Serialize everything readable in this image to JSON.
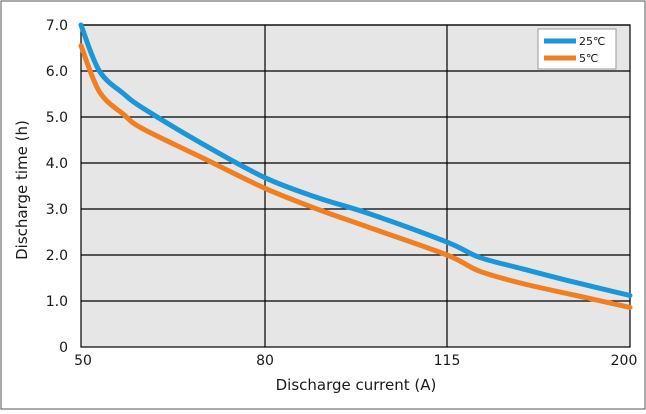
{
  "chart_data": {
    "type": "line",
    "xlabel": "Discharge current (A)",
    "ylabel": "Discharge time (h)",
    "x_ticks": [
      "50",
      "80",
      "115",
      "200"
    ],
    "y_ticks": [
      "0",
      "1.0",
      "2.0",
      "3.0",
      "4.0",
      "5.0",
      "6.0",
      "7.0"
    ],
    "ylim": [
      0,
      7.0
    ],
    "grid": true,
    "legend_position": "top-right",
    "series": [
      {
        "name": "25℃",
        "color": "#1b96d6",
        "points": [
          {
            "x": 50,
            "y": 7.0
          },
          {
            "x": 53,
            "y": 6.0
          },
          {
            "x": 57,
            "y": 5.5
          },
          {
            "x": 60,
            "y": 5.2
          },
          {
            "x": 70,
            "y": 4.4
          },
          {
            "x": 80,
            "y": 3.68
          },
          {
            "x": 90,
            "y": 3.25
          },
          {
            "x": 100,
            "y": 2.9
          },
          {
            "x": 115,
            "y": 2.28
          },
          {
            "x": 130,
            "y": 1.95
          },
          {
            "x": 150,
            "y": 1.7
          },
          {
            "x": 175,
            "y": 1.4
          },
          {
            "x": 200,
            "y": 1.12
          }
        ]
      },
      {
        "name": "5℃",
        "color": "#f07f22",
        "points": [
          {
            "x": 50,
            "y": 6.55
          },
          {
            "x": 53,
            "y": 5.55
          },
          {
            "x": 57,
            "y": 5.05
          },
          {
            "x": 60,
            "y": 4.75
          },
          {
            "x": 70,
            "y": 4.1
          },
          {
            "x": 80,
            "y": 3.45
          },
          {
            "x": 90,
            "y": 3.0
          },
          {
            "x": 100,
            "y": 2.6
          },
          {
            "x": 115,
            "y": 2.0
          },
          {
            "x": 130,
            "y": 1.65
          },
          {
            "x": 150,
            "y": 1.38
          },
          {
            "x": 175,
            "y": 1.12
          },
          {
            "x": 200,
            "y": 0.86
          }
        ]
      }
    ]
  }
}
